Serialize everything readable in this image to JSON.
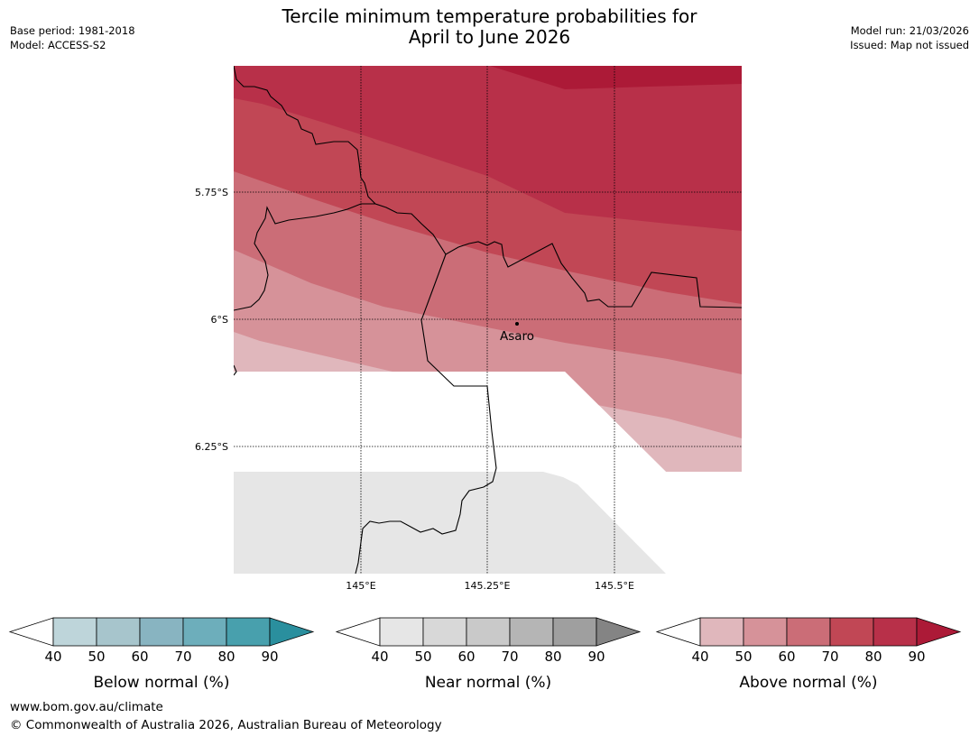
{
  "title": {
    "line1": "Tercile minimum temperature probabilities for",
    "line2": "April to June 2026"
  },
  "meta_left": {
    "base_period": "Base period: 1981-2018",
    "model": "Model: ACCESS-S2"
  },
  "meta_right": {
    "model_run": "Model run: 21/03/2026",
    "issued": "Issued: Map not issued"
  },
  "map": {
    "lat_labels": [
      "5.75°S",
      "6°S",
      "6.25°S"
    ],
    "lon_labels": [
      "145°E",
      "145.25°E",
      "145.5°E"
    ],
    "place": "Asaro",
    "colors": {
      "above_40": "#e0b7bc",
      "above_50": "#d69299",
      "above_60": "#cb6d77",
      "above_70": "#c14755",
      "above_80": "#b83049",
      "above_90": "#ac1a37",
      "no_data": "#e6e6e6"
    }
  },
  "colorbars": [
    {
      "label": "Below normal (%)",
      "ticks": [
        "40",
        "50",
        "60",
        "70",
        "80",
        "90"
      ],
      "colors": [
        "#bed5da",
        "#a7c5cc",
        "#88b4c1",
        "#6daebb",
        "#48a0ad",
        "#2a8f9e"
      ]
    },
    {
      "label": "Near normal (%)",
      "ticks": [
        "40",
        "50",
        "60",
        "70",
        "80",
        "90"
      ],
      "colors": [
        "#e6e6e6",
        "#d8d8d8",
        "#c9c9c9",
        "#b5b5b5",
        "#9f9f9f",
        "#848484"
      ]
    },
    {
      "label": "Above normal (%)",
      "ticks": [
        "40",
        "50",
        "60",
        "70",
        "80",
        "90"
      ],
      "colors": [
        "#e0b7bc",
        "#d69299",
        "#cb6d77",
        "#c14755",
        "#b83049",
        "#ac1a37"
      ]
    }
  ],
  "footer": {
    "url": "www.bom.gov.au/climate",
    "copyright": "© Commonwealth of Australia 2026, Australian Bureau of Meteorology"
  }
}
